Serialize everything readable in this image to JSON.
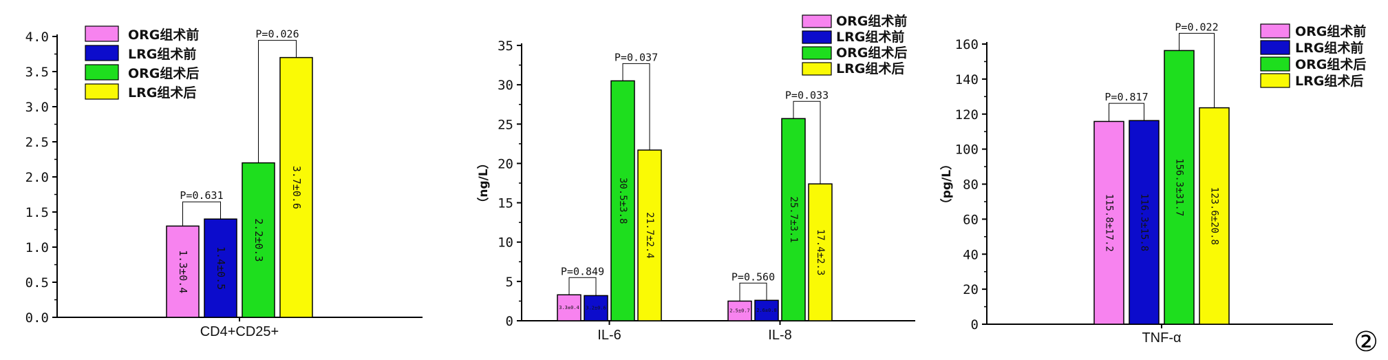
{
  "series": [
    {
      "name": "ORG组术前",
      "color": "#f783ef"
    },
    {
      "name": "LRG组术前",
      "color": "#0c0ccc"
    },
    {
      "name": "ORG组术后",
      "color": "#1ede1e"
    },
    {
      "name": "LRG组术后",
      "color": "#fafa05"
    }
  ],
  "figure_number": "②",
  "chart_data": [
    {
      "type": "bar",
      "title": "",
      "xlabel": "",
      "ylabel": "",
      "ylim": [
        0,
        4.0
      ],
      "yticks": [
        "0.0",
        "0.5",
        "1.0",
        "1.5",
        "2.0",
        "2.5",
        "3.0",
        "3.5",
        "4.0"
      ],
      "categories": [
        "CD4+CD25+"
      ],
      "values": [
        [
          1.3,
          1.4,
          2.2,
          3.7
        ]
      ],
      "labels": [
        [
          "1.3±0.4",
          "1.4±0.5",
          "2.2±0.3",
          "3.7±0.6"
        ]
      ],
      "pvalues": [
        {
          "category": 0,
          "bars": [
            0,
            1
          ],
          "text": "P=0.631"
        },
        {
          "category": 0,
          "bars": [
            2,
            3
          ],
          "text": "P=0.026"
        }
      ],
      "legend": "top-left",
      "grid": false
    },
    {
      "type": "bar",
      "title": "",
      "xlabel": "",
      "ylabel": "（ng/L）",
      "ylim": [
        0,
        35
      ],
      "yticks": [
        "0",
        "5",
        "10",
        "15",
        "20",
        "25",
        "30",
        "35"
      ],
      "categories": [
        "IL-6",
        "IL-8"
      ],
      "values": [
        [
          3.3,
          3.2,
          30.5,
          21.7
        ],
        [
          2.5,
          2.6,
          25.7,
          17.4
        ]
      ],
      "labels": [
        [
          "3.3±0.4",
          "3.2±0.6",
          "30.5±3.8",
          "21.7±2.4"
        ],
        [
          "2.5±0.7",
          "2.6±0.8",
          "25.7±3.1",
          "17.4±2.3"
        ]
      ],
      "pvalues": [
        {
          "category": 0,
          "bars": [
            0,
            1
          ],
          "text": "P=0.849"
        },
        {
          "category": 0,
          "bars": [
            2,
            3
          ],
          "text": "P=0.037"
        },
        {
          "category": 1,
          "bars": [
            0,
            1
          ],
          "text": "P=0.560"
        },
        {
          "category": 1,
          "bars": [
            2,
            3
          ],
          "text": "P=0.033"
        }
      ],
      "legend": "top-right",
      "grid": false
    },
    {
      "type": "bar",
      "title": "",
      "xlabel": "",
      "ylabel": "（pg/L）",
      "ylim": [
        0,
        160
      ],
      "yticks": [
        "0",
        "20",
        "40",
        "60",
        "80",
        "100",
        "120",
        "140",
        "160"
      ],
      "categories": [
        "TNF-α"
      ],
      "values": [
        [
          115.8,
          116.3,
          156.3,
          123.6
        ]
      ],
      "labels": [
        [
          "115.8±17.2",
          "116.3±15.8",
          "156.3±31.7",
          "123.6±20.8"
        ]
      ],
      "pvalues": [
        {
          "category": 0,
          "bars": [
            0,
            1
          ],
          "text": "P=0.817"
        },
        {
          "category": 0,
          "bars": [
            2,
            3
          ],
          "text": "P=0.022"
        }
      ],
      "legend": "top-right",
      "grid": false
    }
  ]
}
